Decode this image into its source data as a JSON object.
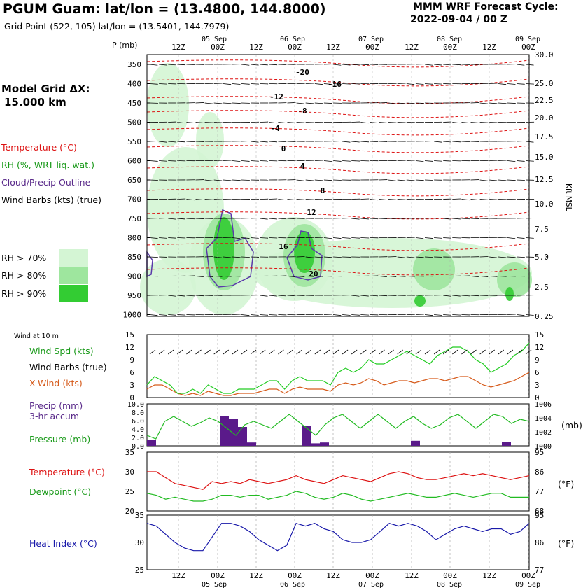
{
  "header": {
    "title": "PGUM Guam:  lat/lon = (13.4800, 144.8000)",
    "subtitle": "Grid Point (522, 105) lat/lon = (13.5401, 144.7979)",
    "cycle_line1": "MMM WRF Forecast Cycle:",
    "cycle_line2": "2022-09-04 / 00  Z",
    "model_grid_line1": "Model Grid ΔX:",
    "model_grid_line2": "15.000 km"
  },
  "legend": {
    "temperature": "Temperature (°C)",
    "rh": "RH (%, WRT liq. wat.)",
    "cloud": "Cloud/Precip Outline",
    "wind_barbs": "Wind Barbs (kts) (true)",
    "rh70": "RH > 70%",
    "rh80": "RH > 80%",
    "rh90": "RH > 90%",
    "wind_at_10m": "Wind at 10 m",
    "wind_spd": "Wind Spd (kts)",
    "wind_barbs2": "Wind Barbs (true)",
    "x_wind": "X-Wind (kts)",
    "precip": "Precip (mm)",
    "precip2": "3-hr accum",
    "pressure": "Pressure (mb)",
    "temp2": "Temperature (°C)",
    "dewpoint": "Dewpoint (°C)",
    "heat_index": "Heat Index (°C)",
    "mb_unit": "(mb)",
    "f_unit1": "(°F)",
    "f_unit2": "(°F)",
    "kft_label": "Kft MSL",
    "p_label": "P (mb)"
  },
  "colors": {
    "rh70": "#d4f5d4",
    "rh80": "#9ee69e",
    "rh90": "#33cc33",
    "temperature": "#dd1111",
    "dewpoint": "#22bb22",
    "wind_spd": "#22cc22",
    "x_wind": "#d65a1a",
    "precip": "#5a1a8a",
    "heat_index": "#1a1aaa",
    "cloud_outline": "#5a3aaa"
  },
  "chart_data": {
    "type": "line",
    "time_axis": {
      "labels_top": [
        "12Z",
        "00Z",
        "12Z",
        "00Z",
        "12Z",
        "00Z",
        "12Z",
        "00Z",
        "12Z",
        "00Z"
      ],
      "dates_top": [
        "05 Sep",
        "06 Sep",
        "07 Sep",
        "08 Sep",
        "09 Sep"
      ],
      "labels_bottom": [
        "12Z",
        "00Z",
        "12Z",
        "00Z",
        "12Z",
        "00Z",
        "12Z",
        "00Z",
        "12Z",
        "00Z"
      ],
      "dates_bottom": [
        "05 Sep",
        "06 Sep",
        "07 Sep",
        "08 Sep",
        "09 Sep"
      ]
    },
    "upper_panel": {
      "pressure_levels": [
        "350",
        "400",
        "450",
        "500",
        "550",
        "600",
        "650",
        "700",
        "750",
        "800",
        "850",
        "900",
        "950",
        "1000"
      ],
      "height_kft": [
        "30.0",
        "25.0",
        "22.5",
        "20.0",
        "17.5",
        "15.0",
        "12.5",
        "10.0",
        "7.5",
        "5.0",
        "2.5",
        "0.25"
      ],
      "temp_contour_labels": [
        "-20",
        "-16",
        "-12",
        "-8",
        "-4",
        "0",
        "4",
        "8",
        "12",
        "16",
        "20"
      ]
    },
    "wind_panel": {
      "ylim": [
        0,
        15
      ],
      "y_ticks": [
        "15",
        "12",
        "9",
        "6",
        "3",
        "0"
      ],
      "wind_spd": [
        3,
        5,
        4,
        3,
        1,
        1,
        2,
        1,
        3,
        2,
        1,
        1,
        2,
        2,
        2,
        3,
        4,
        4,
        2,
        4,
        5,
        4,
        4,
        4,
        3,
        6,
        7,
        6,
        7,
        9,
        8,
        8,
        9,
        10,
        11,
        10,
        9,
        8,
        10,
        11,
        12,
        12,
        11,
        9,
        8,
        6,
        7,
        8,
        10,
        11,
        13
      ],
      "x_wind": [
        2,
        3,
        3,
        2,
        1,
        0.5,
        1,
        0.5,
        1.5,
        1,
        0.5,
        0.5,
        1,
        1,
        1,
        1.5,
        2,
        2,
        1,
        2,
        2.5,
        2,
        2,
        2,
        1.5,
        3,
        3.5,
        3,
        3.5,
        4.5,
        4,
        3,
        3.5,
        4,
        4,
        3.5,
        4,
        4.5,
        4.5,
        4,
        4.5,
        5,
        5,
        4,
        3,
        2.5,
        3,
        3.5,
        4,
        5,
        6
      ]
    },
    "precip_panel": {
      "ylim": [
        0,
        10
      ],
      "y_ticks": [
        "10.0",
        "8.0",
        "6.0",
        "4.0",
        "2.0",
        "0.0"
      ],
      "pressure_ticks": [
        "1006",
        "1004",
        "1002",
        "1000"
      ],
      "precip_bars": [
        {
          "t": 0,
          "v": 1.5
        },
        {
          "t": 8,
          "v": 7.0
        },
        {
          "t": 9,
          "v": 6.5
        },
        {
          "t": 10,
          "v": 4.5
        },
        {
          "t": 11,
          "v": 0.8
        },
        {
          "t": 17,
          "v": 4.8
        },
        {
          "t": 18,
          "v": 0.6
        },
        {
          "t": 19,
          "v": 0.8
        },
        {
          "t": 29,
          "v": 1.2
        },
        {
          "t": 39,
          "v": 1.0
        }
      ],
      "pressure": [
        1001.5,
        1001,
        1003.5,
        1004.2,
        1003.5,
        1002.8,
        1003.3,
        1004.0,
        1003.5,
        1002.5,
        1001.5,
        1003.0,
        1003.5,
        1003.0,
        1002.5,
        1003.5,
        1004.5,
        1003.5,
        1002.5,
        1001.5,
        1003.0,
        1004.0,
        1004.5,
        1003.5,
        1002.5,
        1003.5,
        1004.5,
        1003.5,
        1002.5,
        1003.5,
        1004.2,
        1003.2,
        1002.5,
        1003.0,
        1004.0,
        1004.5,
        1003.5,
        1002.5,
        1003.5,
        1004.5,
        1004.2,
        1003.2,
        1003.8,
        1003.5
      ]
    },
    "temp_panel": {
      "ylim": [
        20,
        35
      ],
      "y_ticks": [
        "35",
        "30",
        "25",
        "20"
      ],
      "f_ticks": [
        "95",
        "86",
        "77",
        "68"
      ],
      "temperature": [
        30,
        30,
        28.5,
        27,
        26.5,
        26,
        25.5,
        27.5,
        27,
        27.5,
        27,
        28,
        27.5,
        27,
        27.5,
        28,
        29,
        28,
        27.5,
        27,
        28,
        29,
        28.5,
        28,
        27.5,
        28.5,
        29.5,
        30,
        29.5,
        28.5,
        28,
        28,
        28.5,
        29,
        29.5,
        29,
        29.5,
        29,
        28.5,
        28,
        28.5,
        29
      ],
      "dewpoint": [
        24.5,
        24,
        23,
        23.5,
        23,
        22.5,
        22.5,
        23,
        24,
        24,
        23.5,
        24,
        24,
        23,
        23.5,
        24,
        25,
        24.5,
        23.5,
        23,
        23.5,
        24.5,
        24,
        23,
        22.5,
        23,
        23.5,
        24,
        24.5,
        24,
        23.5,
        23.5,
        24,
        24.5,
        24,
        23.5,
        24,
        24.5,
        24.5,
        23.5,
        23.5,
        23.5
      ]
    },
    "heat_panel": {
      "ylim": [
        25,
        35
      ],
      "y_ticks": [
        "35",
        "30",
        "25"
      ],
      "f_ticks": [
        "95",
        "86",
        "77"
      ],
      "heat_index": [
        33.5,
        33,
        31.5,
        30,
        29,
        28.5,
        28.5,
        31,
        33.5,
        33.5,
        33,
        32,
        30.5,
        29.5,
        28.5,
        29.5,
        33.5,
        33,
        33.5,
        32.5,
        32,
        30.5,
        30,
        30,
        30.5,
        32,
        33.5,
        33,
        33.5,
        33,
        32,
        30.5,
        31.5,
        32.5,
        33,
        32.5,
        32,
        32.5,
        32.5,
        31.5,
        32,
        33.5
      ]
    }
  }
}
